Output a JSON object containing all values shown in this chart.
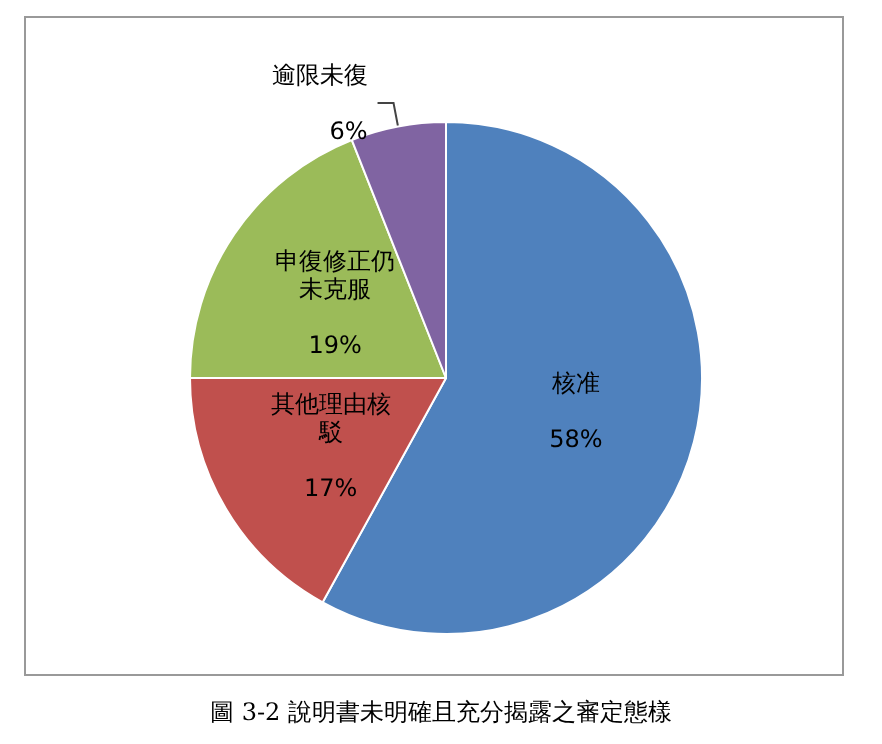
{
  "chart_data": {
    "type": "pie",
    "categories": [
      "核准",
      "其他理由核駁",
      "申復修正仍未克服",
      "逾限未復"
    ],
    "values": [
      58,
      17,
      19,
      6
    ],
    "colors": [
      "#4f81bd",
      "#c0504d",
      "#9bbb59",
      "#8064a2"
    ],
    "value_labels": [
      "58%",
      "17%",
      "19%",
      "6%"
    ],
    "legend": false,
    "annotations": [
      "圖 3-2 說明書未明確且充分揭露之審定態樣"
    ]
  }
}
